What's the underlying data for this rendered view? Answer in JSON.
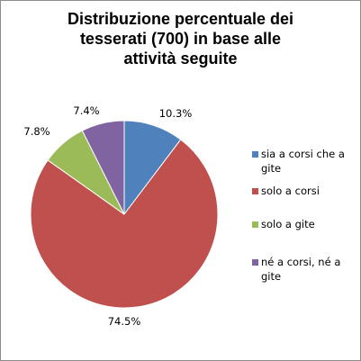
{
  "chart_data": {
    "type": "pie",
    "title_lines": [
      "Distribuzione percentuale dei",
      "tesserati (700) in base alle",
      "attività seguite"
    ],
    "categories": [
      "sia a corsi che a gite",
      "solo a corsi",
      "solo a gite",
      "né a corsi, né a gite"
    ],
    "values": [
      10.3,
      74.5,
      7.8,
      7.4
    ],
    "data_labels": [
      "10.3%",
      "74.5%",
      "7.8%",
      "7.4%"
    ],
    "colors": [
      "#4f81bd",
      "#c0504d",
      "#9bbb59",
      "#8064a2"
    ],
    "legend_position": "right"
  }
}
